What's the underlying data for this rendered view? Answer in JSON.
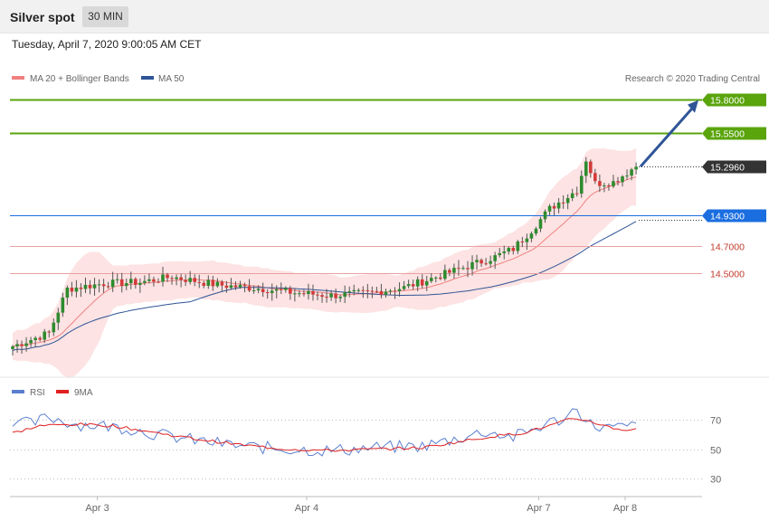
{
  "header": {
    "title": "Silver spot",
    "timeframe": "30 MIN",
    "datetime": "Tuesday, April 7, 2020 9:00:05 AM CET"
  },
  "legend": {
    "ma20_label": "MA 20 + Bollinger Bands",
    "ma50_label": "MA 50",
    "source": "Research © 2020 Trading Central",
    "ma20_color": "#f08080",
    "ma50_color": "#2f5597"
  },
  "levels": [
    {
      "value": 15.8,
      "label": "15.8000",
      "kind": "resistance",
      "color": "#5aa40c"
    },
    {
      "value": 15.55,
      "label": "15.5500",
      "kind": "resistance",
      "color": "#5aa40c"
    },
    {
      "value": 15.296,
      "label": "15.2960",
      "kind": "last",
      "color": "#333333"
    },
    {
      "value": 14.93,
      "label": "14.9300",
      "kind": "pivot",
      "color": "#1a6ee0"
    },
    {
      "value": 14.7,
      "label": "14.7000",
      "kind": "support",
      "color": "#d9534f"
    },
    {
      "value": 14.5,
      "label": "14.5000",
      "kind": "support",
      "color": "#d9534f"
    }
  ],
  "rsi_legend": {
    "rsi_label": "RSI",
    "ma_label": "9MA",
    "rsi_color": "#5b7fcf",
    "ma_color": "#e02020"
  },
  "chart_data": {
    "type": "candlestick",
    "price_axis": {
      "ylim": [
        13.8,
        15.9
      ]
    },
    "x_labels": [
      "Apr 3",
      "Apr 4",
      "Apr 7",
      "Apr 8"
    ],
    "x_label_positions": [
      18,
      64,
      115,
      134
    ],
    "candle_count": 138,
    "target": {
      "from_value": 15.296,
      "to_value": 15.8
    },
    "ohlc_anchors": [
      [
        0,
        13.95
      ],
      [
        8,
        14.05
      ],
      [
        12,
        14.38
      ],
      [
        20,
        14.42
      ],
      [
        28,
        14.43
      ],
      [
        35,
        14.47
      ],
      [
        45,
        14.41
      ],
      [
        55,
        14.38
      ],
      [
        62,
        14.35
      ],
      [
        70,
        14.33
      ],
      [
        78,
        14.35
      ],
      [
        86,
        14.39
      ],
      [
        94,
        14.48
      ],
      [
        100,
        14.55
      ],
      [
        106,
        14.62
      ],
      [
        110,
        14.68
      ],
      [
        114,
        14.82
      ],
      [
        118,
        14.98
      ],
      [
        121,
        15.05
      ],
      [
        124,
        15.12
      ],
      [
        126,
        15.35
      ],
      [
        128,
        15.17
      ],
      [
        132,
        15.18
      ],
      [
        137,
        15.3
      ]
    ],
    "rsi": {
      "ylim": [
        20,
        85
      ],
      "ticks": [
        70,
        50,
        30
      ],
      "rsi_anchors": [
        [
          0,
          70
        ],
        [
          4,
          67
        ],
        [
          8,
          72
        ],
        [
          14,
          67
        ],
        [
          20,
          66
        ],
        [
          26,
          64
        ],
        [
          32,
          60
        ],
        [
          40,
          56
        ],
        [
          50,
          52
        ],
        [
          60,
          50
        ],
        [
          70,
          49
        ],
        [
          80,
          51
        ],
        [
          90,
          52
        ],
        [
          96,
          56
        ],
        [
          104,
          62
        ],
        [
          110,
          58
        ],
        [
          114,
          63
        ],
        [
          118,
          68
        ],
        [
          122,
          72
        ],
        [
          124,
          80
        ],
        [
          126,
          68
        ],
        [
          128,
          66
        ],
        [
          132,
          64
        ],
        [
          137,
          66
        ]
      ],
      "ma_anchors": [
        [
          0,
          61
        ],
        [
          6,
          66
        ],
        [
          14,
          67
        ],
        [
          22,
          66
        ],
        [
          30,
          62
        ],
        [
          40,
          57
        ],
        [
          50,
          53
        ],
        [
          60,
          50
        ],
        [
          70,
          49
        ],
        [
          80,
          50
        ],
        [
          90,
          51
        ],
        [
          98,
          55
        ],
        [
          106,
          59
        ],
        [
          112,
          61
        ],
        [
          118,
          66
        ],
        [
          122,
          70
        ],
        [
          126,
          70
        ],
        [
          130,
          66
        ],
        [
          134,
          63
        ],
        [
          137,
          64
        ]
      ]
    }
  }
}
